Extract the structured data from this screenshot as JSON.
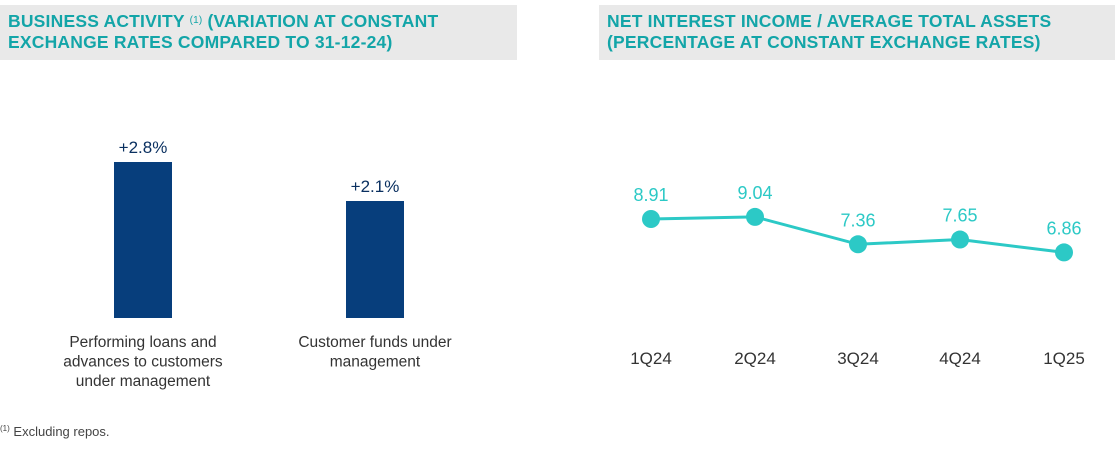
{
  "left_panel": {
    "title_part1": "BUSINESS ACTIVITY",
    "title_sup": "(1)",
    "title_part2": "(VARIATION AT CONSTANT EXCHANGE RATES COMPARED TO 31-12-24)"
  },
  "right_panel": {
    "title": "NET INTEREST INCOME / AVERAGE TOTAL ASSETS (PERCENTAGE AT CONSTANT EXCHANGE RATES)"
  },
  "footnote": {
    "marker": "(1)",
    "text": "Excluding repos."
  },
  "colors": {
    "title": "#13a5a8",
    "bar": "#073e7c",
    "line": "#2cc9c6",
    "header_bg": "#e9e9e9"
  },
  "chart_data": [
    {
      "type": "bar",
      "categories": [
        [
          "Performing loans and",
          "advances to customers",
          "under management"
        ],
        [
          "Customer funds under",
          "management"
        ]
      ],
      "values": [
        2.8,
        2.1
      ],
      "labels": [
        "+2.8%",
        "+2.1%"
      ],
      "unit": "%",
      "ylim": [
        0,
        3.2
      ]
    },
    {
      "type": "line",
      "categories": [
        "1Q24",
        "2Q24",
        "3Q24",
        "4Q24",
        "1Q25"
      ],
      "values": [
        8.91,
        9.04,
        7.36,
        7.65,
        6.86
      ],
      "labels": [
        "8.91",
        "9.04",
        "7.36",
        "7.65",
        "6.86"
      ],
      "ylim": [
        0,
        12
      ]
    }
  ]
}
